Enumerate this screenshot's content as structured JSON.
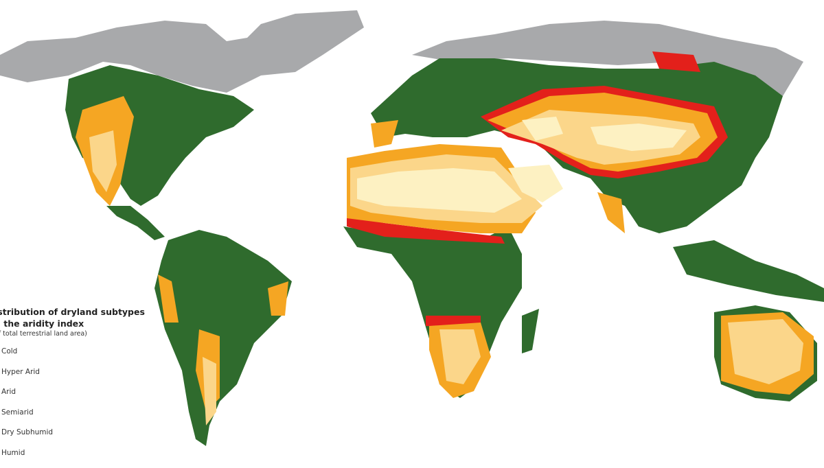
{
  "legend": {
    "title_line1": "istribution of dryland subtypes",
    "title_line2": "n the aridity index",
    "subtitle": "of total terrestrial land area)",
    "items": [
      {
        "label": "Cold",
        "color": "#a8a9ab"
      },
      {
        "label": "Hyper Arid",
        "color": "#fdf1c2"
      },
      {
        "label": "Arid",
        "color": "#fbd68a"
      },
      {
        "label": "Semiarid",
        "color": "#f5a623"
      },
      {
        "label": "Dry Subhumid",
        "color": "#e3201b"
      },
      {
        "label": "Humid",
        "color": "#2f6b2d"
      }
    ]
  }
}
